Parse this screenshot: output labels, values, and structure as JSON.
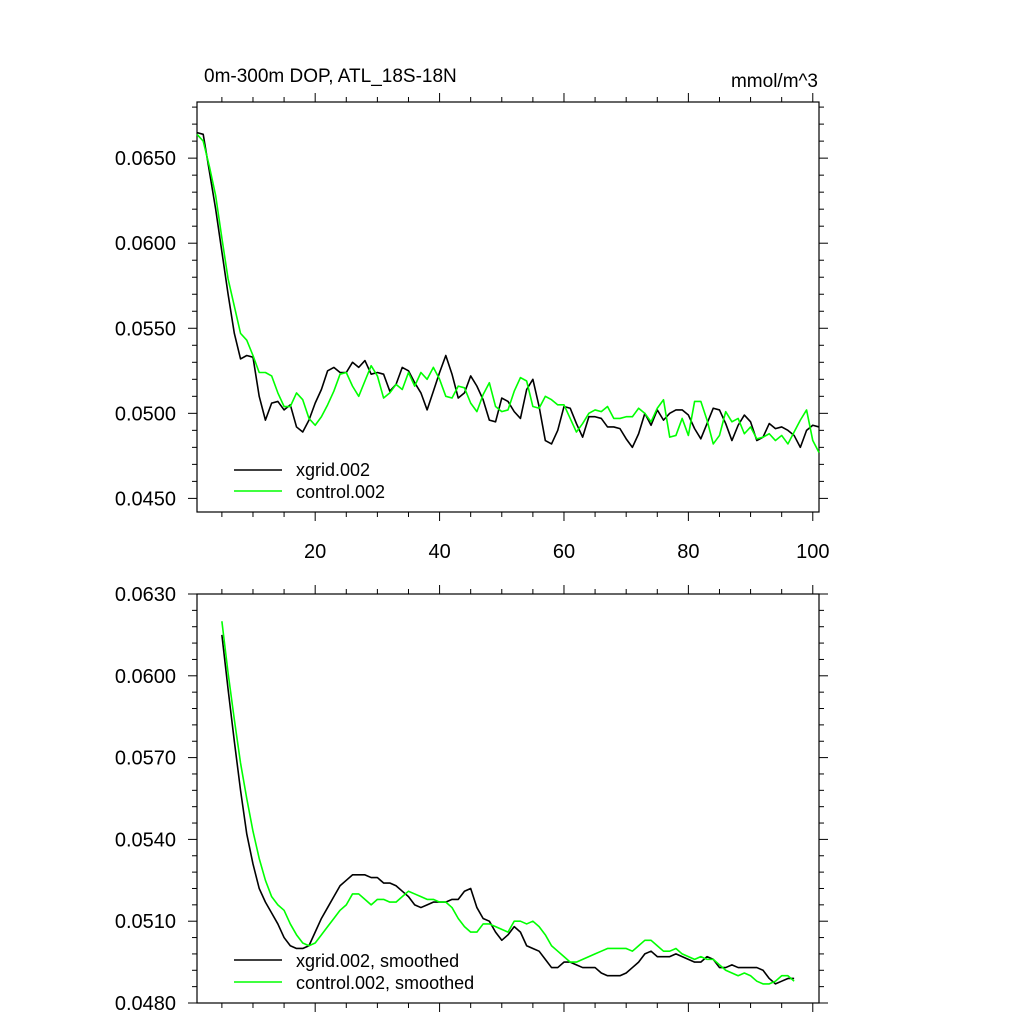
{
  "chart_data": [
    {
      "type": "line",
      "title": "0m-300m DOP, ATL_18S-18N",
      "units": "mmol/m^3",
      "xlim": [
        1,
        101
      ],
      "ylim": [
        0.0442,
        0.0683
      ],
      "xticks": [
        20,
        40,
        60,
        80,
        100
      ],
      "yticks": [
        0.045,
        0.05,
        0.055,
        0.06,
        0.065
      ],
      "ytick_labels": [
        "0.0450",
        "0.0500",
        "0.0550",
        "0.0600",
        "0.0650"
      ],
      "grid": false,
      "legend_position": "bottom-left",
      "x": [
        1,
        2,
        3,
        4,
        5,
        6,
        7,
        8,
        9,
        10,
        11,
        12,
        13,
        14,
        15,
        16,
        17,
        18,
        19,
        20,
        21,
        22,
        23,
        24,
        25,
        26,
        27,
        28,
        29,
        30,
        31,
        32,
        33,
        34,
        35,
        36,
        37,
        38,
        39,
        40,
        41,
        42,
        43,
        44,
        45,
        46,
        47,
        48,
        49,
        50,
        51,
        52,
        53,
        54,
        55,
        56,
        57,
        58,
        59,
        60,
        61,
        62,
        63,
        64,
        65,
        66,
        67,
        68,
        69,
        70,
        71,
        72,
        73,
        74,
        75,
        76,
        77,
        78,
        79,
        80,
        81,
        82,
        83,
        84,
        85,
        86,
        87,
        88,
        89,
        90,
        91,
        92,
        93,
        94,
        95,
        96,
        97,
        98,
        99,
        100,
        101
      ],
      "series": [
        {
          "name": "xgrid.002",
          "color": "#000000",
          "values": [
            0.0665,
            0.0664,
            0.0642,
            0.062,
            0.0595,
            0.057,
            0.0547,
            0.0532,
            0.0534,
            0.0533,
            0.051,
            0.0496,
            0.0506,
            0.0507,
            0.0502,
            0.0505,
            0.0492,
            0.0489,
            0.0496,
            0.0506,
            0.0514,
            0.0525,
            0.0527,
            0.0524,
            0.0524,
            0.053,
            0.0527,
            0.0531,
            0.0523,
            0.0524,
            0.0523,
            0.0513,
            0.0517,
            0.0527,
            0.0525,
            0.0518,
            0.0512,
            0.0502,
            0.0513,
            0.0524,
            0.0534,
            0.0523,
            0.0509,
            0.0512,
            0.0522,
            0.0516,
            0.0508,
            0.0496,
            0.0495,
            0.0509,
            0.0507,
            0.0501,
            0.0497,
            0.0514,
            0.052,
            0.0504,
            0.0484,
            0.0482,
            0.049,
            0.0504,
            0.0503,
            0.0494,
            0.0486,
            0.0498,
            0.0498,
            0.0497,
            0.0492,
            0.0492,
            0.0491,
            0.0485,
            0.048,
            0.0488,
            0.05,
            0.0493,
            0.0502,
            0.0496,
            0.05,
            0.0502,
            0.0502,
            0.0499,
            0.0491,
            0.0485,
            0.0494,
            0.0503,
            0.0502,
            0.0494,
            0.0484,
            0.0493,
            0.0499,
            0.0495,
            0.0484,
            0.0486,
            0.0494,
            0.0491,
            0.0492,
            0.049,
            0.0487,
            0.048,
            0.049,
            0.0493,
            0.0492
          ]
        },
        {
          "name": "control.002",
          "color": "#00ff00",
          "values": [
            0.0664,
            0.066,
            0.0645,
            0.0628,
            0.0603,
            0.0579,
            0.0563,
            0.0547,
            0.0543,
            0.0534,
            0.0524,
            0.0524,
            0.0522,
            0.0512,
            0.0504,
            0.0504,
            0.0512,
            0.0508,
            0.0497,
            0.0493,
            0.0498,
            0.0505,
            0.0513,
            0.0523,
            0.0524,
            0.0516,
            0.051,
            0.0519,
            0.0528,
            0.0522,
            0.0509,
            0.0512,
            0.0517,
            0.0514,
            0.0524,
            0.0516,
            0.0524,
            0.052,
            0.0527,
            0.052,
            0.051,
            0.0509,
            0.0516,
            0.0515,
            0.0506,
            0.0501,
            0.0511,
            0.0518,
            0.0504,
            0.0501,
            0.0502,
            0.0513,
            0.0521,
            0.0519,
            0.0504,
            0.0503,
            0.051,
            0.0508,
            0.0505,
            0.0505,
            0.0497,
            0.0489,
            0.0494,
            0.05,
            0.0502,
            0.0501,
            0.0504,
            0.0497,
            0.0497,
            0.0498,
            0.0498,
            0.0503,
            0.05,
            0.0495,
            0.0503,
            0.0508,
            0.0486,
            0.0487,
            0.0497,
            0.0487,
            0.0507,
            0.0507,
            0.0496,
            0.0482,
            0.0487,
            0.0501,
            0.0495,
            0.0497,
            0.0488,
            0.0492,
            0.0485,
            0.0486,
            0.0488,
            0.0484,
            0.0487,
            0.0482,
            0.0489,
            0.0496,
            0.0502,
            0.0484,
            0.0477
          ]
        }
      ]
    },
    {
      "type": "line",
      "title": "",
      "xlim": [
        1,
        101
      ],
      "ylim": [
        0.048,
        0.063
      ],
      "xticks": [
        20,
        40,
        60,
        80,
        100
      ],
      "yticks": [
        0.048,
        0.051,
        0.054,
        0.057,
        0.06,
        0.063
      ],
      "ytick_labels": [
        "0.0480",
        "0.0510",
        "0.0540",
        "0.0570",
        "0.0600",
        "0.0630"
      ],
      "grid": false,
      "legend_position": "bottom-left",
      "x": [
        5,
        6,
        7,
        8,
        9,
        10,
        11,
        12,
        13,
        14,
        15,
        16,
        17,
        18,
        19,
        20,
        21,
        22,
        23,
        24,
        25,
        26,
        27,
        28,
        29,
        30,
        31,
        32,
        33,
        34,
        35,
        36,
        37,
        38,
        39,
        40,
        41,
        42,
        43,
        44,
        45,
        46,
        47,
        48,
        49,
        50,
        51,
        52,
        53,
        54,
        55,
        56,
        57,
        58,
        59,
        60,
        61,
        62,
        63,
        64,
        65,
        66,
        67,
        68,
        69,
        70,
        71,
        72,
        73,
        74,
        75,
        76,
        77,
        78,
        79,
        80,
        81,
        82,
        83,
        84,
        85,
        86,
        87,
        88,
        89,
        90,
        91,
        92,
        93,
        94,
        95,
        96,
        97
      ],
      "series": [
        {
          "name": "xgrid.002, smoothed",
          "color": "#000000",
          "values": [
            0.0615,
            0.0595,
            0.0576,
            0.0558,
            0.0542,
            0.0531,
            0.0522,
            0.0517,
            0.0513,
            0.0509,
            0.0504,
            0.0501,
            0.05,
            0.05,
            0.0501,
            0.0506,
            0.0511,
            0.0515,
            0.0519,
            0.0523,
            0.0525,
            0.0527,
            0.0527,
            0.0527,
            0.0526,
            0.0526,
            0.0524,
            0.0524,
            0.0523,
            0.0521,
            0.0519,
            0.0516,
            0.0515,
            0.0516,
            0.0517,
            0.0517,
            0.0517,
            0.0518,
            0.0518,
            0.0521,
            0.0522,
            0.0515,
            0.0511,
            0.051,
            0.0506,
            0.0503,
            0.0505,
            0.0508,
            0.0506,
            0.0501,
            0.05,
            0.0499,
            0.0496,
            0.0493,
            0.0493,
            0.0495,
            0.0495,
            0.0494,
            0.0493,
            0.0493,
            0.0493,
            0.0491,
            0.049,
            0.049,
            0.049,
            0.0491,
            0.0493,
            0.0495,
            0.0498,
            0.0499,
            0.0497,
            0.0497,
            0.0497,
            0.0498,
            0.0497,
            0.0496,
            0.0495,
            0.0495,
            0.0497,
            0.0496,
            0.0493,
            0.0493,
            0.0494,
            0.0493,
            0.0493,
            0.0493,
            0.0493,
            0.0492,
            0.0489,
            0.0487,
            0.0488,
            0.0489,
            0.0489
          ]
        },
        {
          "name": "control.002, smoothed",
          "color": "#00ff00",
          "values": [
            0.062,
            0.0601,
            0.0584,
            0.0568,
            0.0555,
            0.0543,
            0.0533,
            0.0525,
            0.0519,
            0.0516,
            0.0514,
            0.0509,
            0.0505,
            0.0502,
            0.0501,
            0.0502,
            0.0505,
            0.0508,
            0.0511,
            0.0514,
            0.0516,
            0.052,
            0.052,
            0.0518,
            0.0516,
            0.0518,
            0.0518,
            0.0517,
            0.0517,
            0.0519,
            0.0521,
            0.052,
            0.0519,
            0.0518,
            0.0518,
            0.0517,
            0.0517,
            0.0515,
            0.0511,
            0.0508,
            0.0506,
            0.0506,
            0.0509,
            0.0509,
            0.0508,
            0.0507,
            0.0506,
            0.051,
            0.051,
            0.0509,
            0.051,
            0.0508,
            0.0505,
            0.0501,
            0.0499,
            0.0497,
            0.0495,
            0.0495,
            0.0496,
            0.0497,
            0.0498,
            0.0499,
            0.05,
            0.05,
            0.05,
            0.05,
            0.0499,
            0.0501,
            0.0503,
            0.0503,
            0.0501,
            0.0499,
            0.0499,
            0.05,
            0.0498,
            0.0497,
            0.0496,
            0.0497,
            0.0496,
            0.0496,
            0.0494,
            0.0492,
            0.0491,
            0.049,
            0.0491,
            0.049,
            0.0488,
            0.0487,
            0.0487,
            0.0488,
            0.049,
            0.049,
            0.0488
          ]
        }
      ]
    }
  ]
}
